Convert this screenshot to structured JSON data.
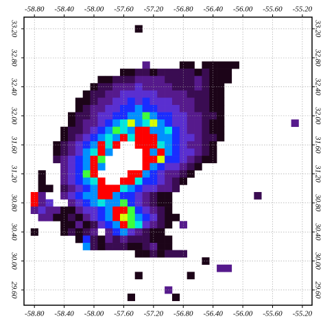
{
  "chart_data": {
    "type": "heatmap",
    "xlim": [
      -58.94,
      -55.07
    ],
    "ylim": [
      29.39,
      33.36
    ],
    "xticks": [
      {
        "value": -58.8,
        "label": "-58.80"
      },
      {
        "value": -58.4,
        "label": "-58.40"
      },
      {
        "value": -58.0,
        "label": "-58.00"
      },
      {
        "value": -57.6,
        "label": "-57.60"
      },
      {
        "value": -57.2,
        "label": "-57.20"
      },
      {
        "value": -56.8,
        "label": "-56.80"
      },
      {
        "value": -56.4,
        "label": "-56.40"
      },
      {
        "value": -56.0,
        "label": "-56.00"
      },
      {
        "value": -55.6,
        "label": "-55.60"
      },
      {
        "value": -55.2,
        "label": "-55.20"
      }
    ],
    "yticks": [
      {
        "value": 29.6,
        "label": "29.60"
      },
      {
        "value": 30.0,
        "label": "30.00"
      },
      {
        "value": 30.4,
        "label": "30.40"
      },
      {
        "value": 30.8,
        "label": "30.80"
      },
      {
        "value": 31.2,
        "label": "31.20"
      },
      {
        "value": 31.6,
        "label": "31.60"
      },
      {
        "value": 32.0,
        "label": "32.00"
      },
      {
        "value": 32.4,
        "label": "32.40"
      },
      {
        "value": 32.8,
        "label": "32.80"
      },
      {
        "value": 33.2,
        "label": "33.20"
      }
    ],
    "grid": true,
    "cell_size": 0.1,
    "palette": [
      "#1c0418",
      "#3a0c52",
      "#561a8c",
      "#5a2fd0",
      "#1a2cff",
      "#0090ff",
      "#00e8e0",
      "#3cff3c",
      "#d8ff00",
      "#ff0000"
    ],
    "rows": [
      {
        "lat": 33.2,
        "lon0": -57.4,
        "levels": [
          1
        ]
      },
      {
        "lat": 32.7,
        "lon0": -57.3,
        "levels": [
          3,
          null,
          null,
          null,
          null,
          1,
          1,
          null,
          1,
          1,
          1,
          1,
          1
        ]
      },
      {
        "lat": 32.6,
        "lon0": -57.6,
        "levels": [
          1,
          1,
          2,
          2,
          1,
          2,
          2,
          2,
          2,
          2,
          1,
          2,
          1,
          1,
          1
        ]
      },
      {
        "lat": 32.5,
        "lon0": -57.9,
        "levels": [
          1,
          1,
          2,
          2,
          2,
          3,
          3,
          3,
          3,
          2,
          2,
          2,
          2,
          3,
          2,
          1,
          1,
          1
        ]
      },
      {
        "lat": 32.4,
        "lon0": -58.0,
        "levels": [
          1,
          2,
          2,
          3,
          3,
          3,
          4,
          3,
          3,
          3,
          3,
          2,
          2,
          2,
          3,
          2,
          1,
          1
        ]
      },
      {
        "lat": 32.3,
        "lon0": -58.1,
        "levels": [
          1,
          2,
          2,
          3,
          3,
          4,
          4,
          4,
          4,
          4,
          3,
          3,
          3,
          3,
          2,
          2,
          2,
          1,
          1
        ]
      },
      {
        "lat": 32.2,
        "lon0": -58.2,
        "levels": [
          1,
          1,
          2,
          3,
          3,
          4,
          4,
          5,
          4,
          5,
          4,
          4,
          4,
          3,
          3,
          3,
          2,
          2,
          1,
          1
        ]
      },
      {
        "lat": 32.1,
        "lon0": -58.2,
        "levels": [
          1,
          2,
          3,
          3,
          4,
          4,
          5,
          5,
          6,
          5,
          5,
          4,
          4,
          4,
          3,
          3,
          2,
          2,
          1,
          1
        ]
      },
      {
        "lat": 32.0,
        "lon0": -58.3,
        "levels": [
          1,
          2,
          2,
          3,
          4,
          4,
          5,
          5,
          6,
          6,
          8,
          6,
          5,
          5,
          4,
          4,
          3,
          3,
          2,
          2,
          1
        ]
      },
      {
        "lat": 31.9,
        "lon0": -58.3,
        "levels": [
          1,
          2,
          3,
          3,
          4,
          5,
          6,
          7,
          9,
          6,
          7,
          9,
          6,
          5,
          4,
          4,
          3,
          3,
          2,
          1,
          1
        ]
      },
      {
        "lat": 31.9,
        "lon0": -55.3,
        "levels": [
          3
        ]
      },
      {
        "lat": 31.8,
        "lon0": -58.4,
        "levels": [
          1,
          2,
          2,
          3,
          4,
          5,
          6,
          8,
          7,
          6,
          10,
          10,
          6,
          6,
          7,
          5,
          4,
          3,
          3,
          2,
          1,
          1
        ]
      },
      {
        "lat": 31.7,
        "lon0": -58.4,
        "levels": [
          1,
          2,
          3,
          4,
          5,
          6,
          7,
          6,
          10,
          7,
          10,
          10,
          10,
          6,
          6,
          5,
          4,
          4,
          3,
          2,
          2,
          1
        ]
      },
      {
        "lat": 31.6,
        "lon0": -58.5,
        "levels": [
          1,
          2,
          3,
          4,
          5,
          6,
          10,
          7,
          10,
          null,
          null,
          10,
          10,
          10,
          7,
          6,
          5,
          4,
          3,
          3,
          2,
          1
        ]
      },
      {
        "lat": 31.5,
        "lon0": -58.5,
        "levels": [
          1,
          2,
          3,
          4,
          6,
          7,
          10,
          6,
          null,
          null,
          null,
          null,
          10,
          6,
          10,
          6,
          5,
          4,
          4,
          3,
          2,
          1
        ]
      },
      {
        "lat": 31.4,
        "lon0": -58.5,
        "levels": [
          2,
          3,
          4,
          5,
          6,
          10,
          8,
          null,
          null,
          null,
          null,
          null,
          10,
          10,
          9,
          5,
          5,
          4,
          3,
          2,
          1,
          1
        ]
      },
      {
        "lat": 31.3,
        "lon0": -58.4,
        "levels": [
          3,
          4,
          5,
          6,
          10,
          6,
          null,
          null,
          null,
          null,
          null,
          10,
          6,
          5,
          4,
          4,
          3,
          2,
          1
        ]
      },
      {
        "lat": 31.2,
        "lon0": -58.7,
        "levels": [
          1,
          null,
          null,
          3,
          4,
          5,
          8,
          10,
          null,
          null,
          null,
          null,
          10,
          10,
          6,
          5,
          4,
          3,
          3,
          2,
          1
        ]
      },
      {
        "lat": 31.1,
        "lon0": -58.7,
        "levels": [
          1,
          null,
          null,
          3,
          4,
          5,
          6,
          7,
          10,
          null,
          null,
          10,
          10,
          7,
          5,
          5,
          4,
          3,
          2,
          1
        ]
      },
      {
        "lat": 31.0,
        "lon0": -58.7,
        "levels": [
          1,
          1,
          null,
          2,
          3,
          4,
          5,
          6,
          10,
          10,
          10,
          7,
          6,
          5,
          4,
          4,
          3,
          3,
          2
        ]
      },
      {
        "lat": 30.9,
        "lon0": -58.8,
        "levels": [
          10,
          3,
          null,
          null,
          3,
          4,
          5,
          6,
          6,
          10,
          10,
          6,
          5,
          5,
          4,
          3,
          2,
          1,
          1
        ]
      },
      {
        "lat": 30.9,
        "lon0": -55.8,
        "levels": [
          2
        ]
      },
      {
        "lat": 30.8,
        "lon0": -58.8,
        "levels": [
          10,
          3,
          4,
          null,
          null,
          3,
          4,
          5,
          6,
          7,
          6,
          6,
          8,
          5,
          4,
          3,
          2,
          1,
          1
        ]
      },
      {
        "lat": 30.7,
        "lon0": -58.8,
        "levels": [
          3,
          4,
          3,
          3,
          1,
          1,
          3,
          4,
          4,
          5,
          6,
          10,
          10,
          8,
          5,
          4,
          3,
          2,
          1
        ]
      },
      {
        "lat": 30.6,
        "lon0": -58.7,
        "levels": [
          3,
          3,
          1,
          1,
          2,
          1,
          3,
          4,
          5,
          6,
          10,
          9,
          8,
          6,
          5,
          4,
          2,
          1,
          1
        ]
      },
      {
        "lat": 30.5,
        "lon0": -58.4,
        "levels": [
          1,
          1,
          3,
          1,
          2,
          4,
          5,
          6,
          10,
          8,
          7,
          4,
          3,
          2,
          1,
          null,
          3
        ]
      },
      {
        "lat": 30.4,
        "lon0": -58.8,
        "levels": [
          1,
          null,
          null,
          null,
          1,
          2,
          1,
          2,
          3,
          null,
          3,
          5,
          6,
          4,
          3,
          2,
          1,
          1
        ]
      },
      {
        "lat": 30.3,
        "lon0": -58.2,
        "levels": [
          1,
          5,
          2,
          1,
          3,
          2,
          3,
          2,
          2,
          2,
          1,
          1,
          1
        ]
      },
      {
        "lat": 30.2,
        "lon0": -58.1,
        "levels": [
          6,
          2,
          1,
          2,
          2,
          2,
          1,
          1,
          2,
          3,
          1,
          1
        ]
      },
      {
        "lat": 30.1,
        "lon0": -57.4,
        "levels": [
          1,
          1,
          2,
          1,
          2,
          2,
          2
        ]
      },
      {
        "lat": 30.0,
        "lon0": -56.5,
        "levels": [
          1
        ]
      },
      {
        "lat": 29.9,
        "lon0": -56.3,
        "levels": [
          3,
          3
        ]
      },
      {
        "lat": 29.8,
        "lon0": -57.4,
        "levels": [
          1,
          null,
          null,
          null,
          null,
          null,
          null,
          1
        ]
      },
      {
        "lat": 29.6,
        "lon0": -57.0,
        "levels": [
          3
        ]
      },
      {
        "lat": 29.5,
        "lon0": -57.5,
        "levels": [
          1,
          null,
          null,
          null,
          null,
          null,
          1
        ]
      }
    ]
  }
}
